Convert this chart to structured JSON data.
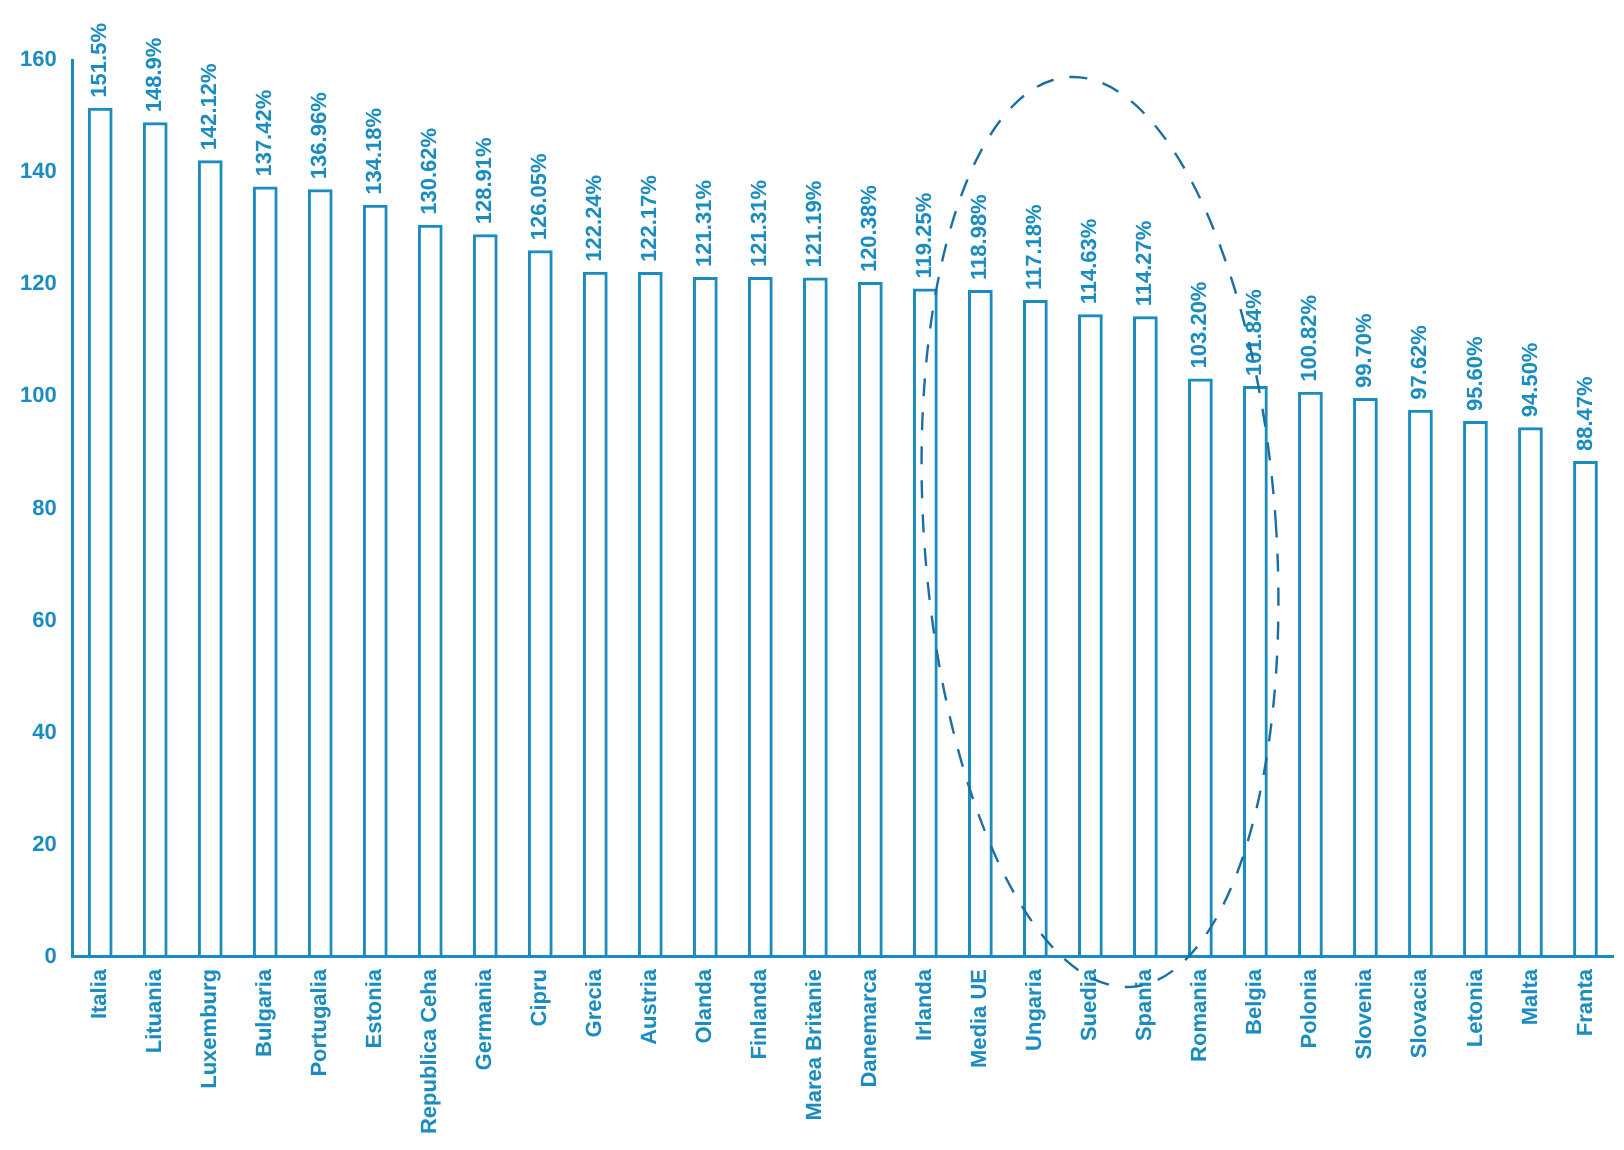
{
  "chart_data": {
    "type": "bar",
    "categories": [
      "Italia",
      "Lituania",
      "Luxemburg",
      "Bulgaria",
      "Portugalia",
      "Estonia",
      "Republica Ceha",
      "Germania",
      "Cipru",
      "Grecia",
      "Austria",
      "Olanda",
      "Finlanda",
      "Marea Britanie",
      "Danemarca",
      "Irlanda",
      "Media UE",
      "Ungaria",
      "Suedia",
      "Spania",
      "Romania",
      "Belgia",
      "Polonia",
      "Slovenia",
      "Slovacia",
      "Letonia",
      "Malta",
      "Franta"
    ],
    "series": [
      {
        "color": "#1a8cc0",
        "values": [
          151.5,
          148.9,
          142.12,
          137.42,
          136.96,
          134.18,
          130.62,
          128.91,
          126.05,
          122.24,
          122.17,
          121.31,
          121.31,
          121.19,
          120.38,
          119.25,
          118.98,
          117.18,
          114.63,
          114.27,
          103.2,
          101.84,
          100.82,
          99.7,
          97.62,
          95.6,
          94.5,
          88.47
        ],
        "value_labels": [
          "151.5%",
          "148.9%",
          "142.12%",
          "137.42%",
          "136.96%",
          "134.18%",
          "130.62%",
          "128.91%",
          "126.05%",
          "122.24%",
          "122.17%",
          "121.31%",
          "121.31%",
          "121.19%",
          "120.38%",
          "119.25%",
          "118.98%",
          "117.18%",
          "114.63%",
          "114.27%",
          "103.20%",
          "101.84%",
          "100.82%",
          "99.70%",
          "97.62%",
          "95.60%",
          "94.50%",
          "88.47%"
        ]
      }
    ],
    "ylim": [
      0,
      160
    ],
    "yticks": [
      0,
      20,
      40,
      60,
      80,
      100,
      120,
      140,
      160
    ],
    "grid": false,
    "legend": false
  }
}
